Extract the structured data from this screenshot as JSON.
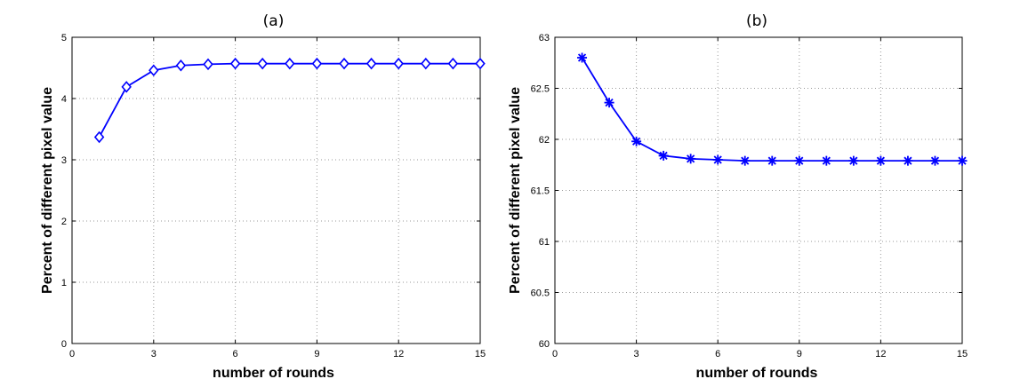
{
  "chart_data": [
    {
      "type": "line",
      "title": "(a)",
      "xlabel": "number of rounds",
      "ylabel": "Percent of different pixel value",
      "xlim": [
        0,
        15
      ],
      "ylim": [
        0,
        5
      ],
      "xticks": [
        0,
        3,
        6,
        9,
        12,
        15
      ],
      "yticks": [
        0,
        1,
        2,
        3,
        4,
        5
      ],
      "xtick_labels": [
        "0",
        "3",
        "6",
        "9",
        "12",
        "15"
      ],
      "ytick_labels": [
        "0",
        "1",
        "2",
        "3",
        "4",
        "5"
      ],
      "grid": true,
      "series": [
        {
          "color": "#0000ff",
          "marker": "diamond",
          "x": [
            1,
            2,
            3,
            4,
            5,
            6,
            7,
            8,
            9,
            10,
            11,
            12,
            13,
            14,
            15
          ],
          "y": [
            3.37,
            4.19,
            4.46,
            4.54,
            4.56,
            4.57,
            4.57,
            4.57,
            4.57,
            4.57,
            4.57,
            4.57,
            4.57,
            4.57,
            4.57
          ]
        }
      ]
    },
    {
      "type": "line",
      "title": "(b)",
      "xlabel": "number of rounds",
      "ylabel": "Percent of different pixel value",
      "xlim": [
        0,
        15
      ],
      "ylim": [
        60,
        63
      ],
      "xticks": [
        0,
        3,
        6,
        9,
        12,
        15
      ],
      "yticks": [
        60,
        60.5,
        61,
        61.5,
        62,
        62.5,
        63
      ],
      "xtick_labels": [
        "0",
        "3",
        "6",
        "9",
        "12",
        "15"
      ],
      "ytick_labels": [
        "60",
        "60.5",
        "61",
        "61.5",
        "62",
        "62.5",
        "63"
      ],
      "grid": true,
      "series": [
        {
          "color": "#0000ff",
          "marker": "asterisk",
          "x": [
            1,
            2,
            3,
            4,
            5,
            6,
            7,
            8,
            9,
            10,
            11,
            12,
            13,
            14,
            15
          ],
          "y": [
            62.8,
            62.36,
            61.98,
            61.84,
            61.81,
            61.8,
            61.79,
            61.79,
            61.79,
            61.79,
            61.79,
            61.79,
            61.79,
            61.79,
            61.79
          ]
        }
      ]
    }
  ]
}
